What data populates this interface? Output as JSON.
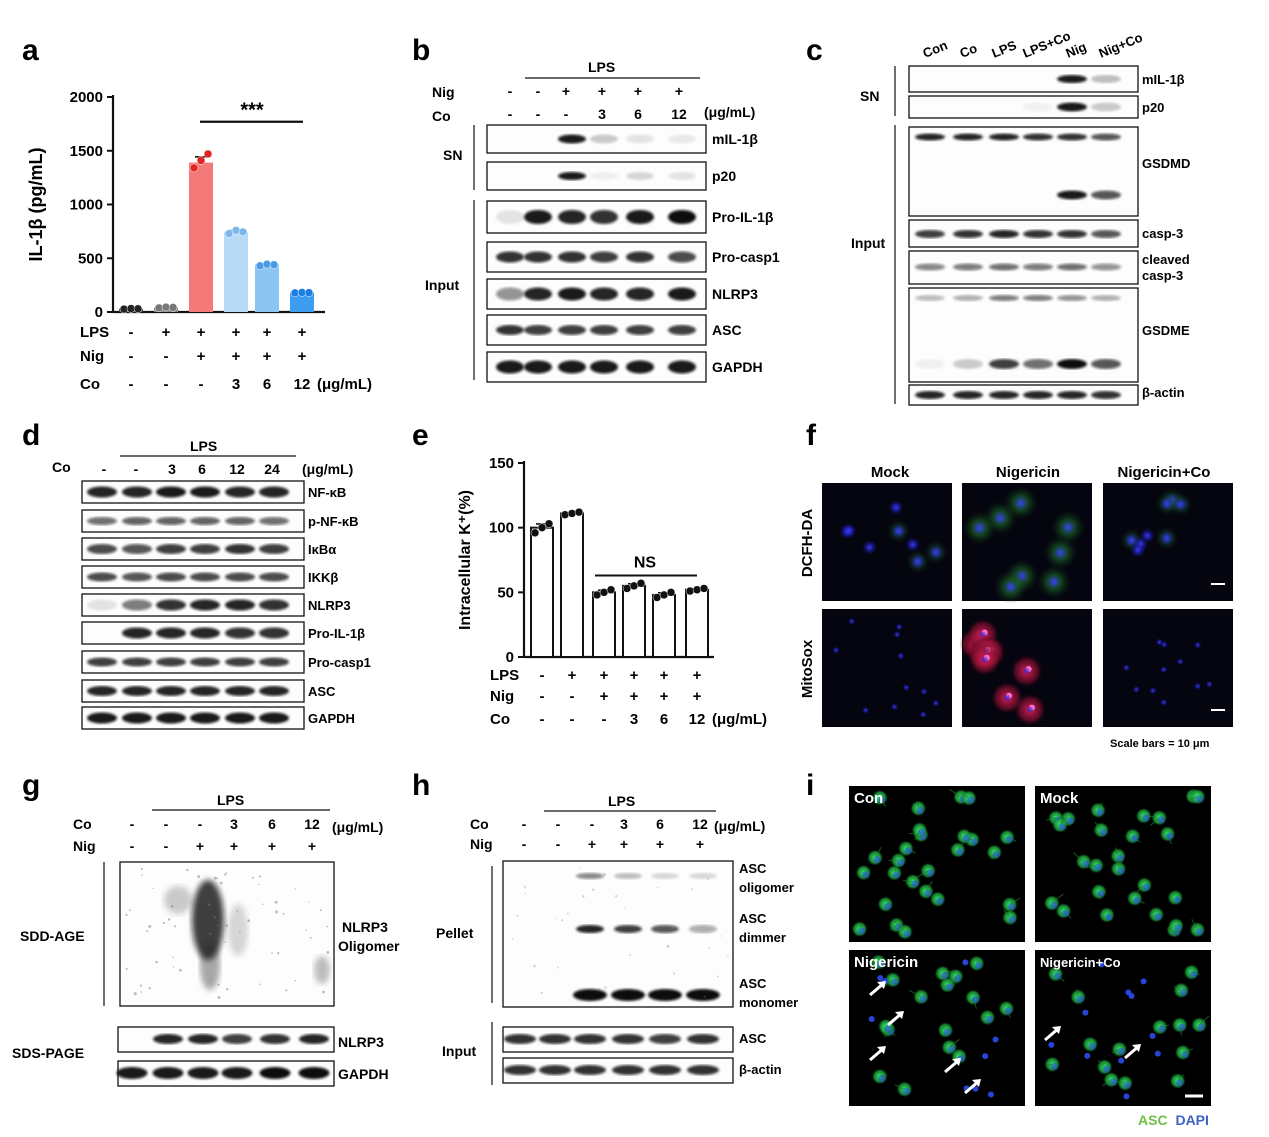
{
  "panels": {
    "a": {
      "letter": "a"
    },
    "b": {
      "letter": "b",
      "group": "LPS",
      "rows": [
        "Nig",
        "Co"
      ],
      "unit": "(μg/mL)",
      "nig": [
        "-",
        "-",
        "+",
        "+",
        "+",
        "+"
      ],
      "co": [
        "-",
        "-",
        "-",
        "3",
        "6",
        "12"
      ],
      "sections": [
        "SN",
        "Input"
      ],
      "bands": [
        "mIL-1β",
        "p20",
        "Pro-IL-1β",
        "Pro-casp1",
        "NLRP3",
        "ASC",
        "GAPDH"
      ]
    },
    "c": {
      "letter": "c",
      "lanes": [
        "Con",
        "Co",
        "LPS",
        "LPS+Co",
        "Nig",
        "Nig+Co"
      ],
      "sections": [
        "SN",
        "Input"
      ],
      "bands": [
        "mIL-1β",
        "p20",
        "GSDMD",
        "casp-3",
        "cleaved",
        "casp-3",
        "GSDME",
        "β-actin"
      ]
    },
    "d": {
      "letter": "d",
      "group": "LPS",
      "row": "Co",
      "unit": "(μg/mL)",
      "co": [
        "-",
        "-",
        "3",
        "6",
        "12",
        "24"
      ],
      "bands": [
        "NF-κB",
        "p-NF-κB",
        "IκBα",
        "IKKβ",
        "NLRP3",
        "Pro-IL-1β",
        "Pro-casp1",
        "ASC",
        "GAPDH"
      ]
    },
    "e": {
      "letter": "e"
    },
    "f": {
      "letter": "f",
      "columns": [
        "Mock",
        "Nigericin",
        "Nigericin+Co"
      ],
      "rows": [
        "DCFH-DA",
        "MitoSox"
      ],
      "scale": "Scale bars = 10 μm"
    },
    "g": {
      "letter": "g",
      "group": "LPS",
      "rows": [
        "Co",
        "Nig"
      ],
      "unit": "(μg/mL)",
      "co": [
        "-",
        "-",
        "-",
        "3",
        "6",
        "12"
      ],
      "nig": [
        "-",
        "-",
        "+",
        "+",
        "+",
        "+"
      ],
      "sections": [
        "SDD-AGE",
        "SDS-PAGE"
      ],
      "bands": [
        "NLRP3",
        "Oligomer",
        "NLRP3",
        "GAPDH"
      ]
    },
    "h": {
      "letter": "h",
      "group": "LPS",
      "rows": [
        "Co",
        "Nig"
      ],
      "unit": "(μg/mL)",
      "co": [
        "-",
        "-",
        "-",
        "3",
        "6",
        "12"
      ],
      "nig": [
        "-",
        "-",
        "+",
        "+",
        "+",
        "+"
      ],
      "sections": [
        "Pellet",
        "Input"
      ],
      "bands": [
        "ASC",
        "oligomer",
        "ASC",
        "dimmer",
        "ASC",
        "monomer",
        "ASC",
        "β-actin"
      ]
    },
    "i": {
      "letter": "i",
      "tiles": [
        "Con",
        "Mock",
        "Nigericin",
        "Nigericin+Co"
      ],
      "legend_asc": "ASC",
      "legend_dapi": "DAPI"
    }
  },
  "chart_data": [
    {
      "panel": "a",
      "type": "bar",
      "ylabel": "IL-1β (pg/mL)",
      "ylim": [
        0,
        2000
      ],
      "yticks": [
        0,
        500,
        1000,
        1500,
        2000
      ],
      "values": [
        30,
        42,
        1390,
        745,
        440,
        180
      ],
      "points": [
        [
          27,
          32,
          30
        ],
        [
          38,
          45,
          43
        ],
        [
          1340,
          1410,
          1470
        ],
        [
          730,
          760,
          745
        ],
        [
          430,
          445,
          440
        ],
        [
          178,
          182,
          180
        ]
      ],
      "colors": [
        "#444444",
        "#888888",
        "#f47a7a",
        "#b9daf5",
        "#8cc4f2",
        "#3d9df0"
      ],
      "point_colors": [
        "#222222",
        "#777777",
        "#e02424",
        "#7fb8ec",
        "#4a9be5",
        "#1a7fe0"
      ],
      "rows": {
        "LPS": [
          "-",
          "+",
          "+",
          "+",
          "+",
          "+"
        ],
        "Nig": [
          "-",
          "-",
          "+",
          "+",
          "+",
          "+"
        ],
        "Co": [
          "-",
          "-",
          "-",
          "3",
          "6",
          "12"
        ]
      },
      "row_labels": [
        "LPS",
        "Nig",
        "Co"
      ],
      "unit": "(μg/mL)",
      "significance": "***"
    },
    {
      "panel": "e",
      "type": "bar",
      "ylabel": "Intracellular K⁺(%)",
      "ylim": [
        0,
        150
      ],
      "yticks": [
        0,
        50,
        100,
        150
      ],
      "values": [
        100,
        111,
        50,
        55,
        48,
        52
      ],
      "points": [
        [
          96,
          100,
          103
        ],
        [
          110,
          111,
          112
        ],
        [
          48,
          50,
          52
        ],
        [
          53,
          55,
          57
        ],
        [
          46,
          48,
          50
        ],
        [
          51,
          52,
          53
        ]
      ],
      "rows": {
        "LPS": [
          "-",
          "+",
          "+",
          "+",
          "+",
          "+"
        ],
        "Nig": [
          "-",
          "-",
          "+",
          "+",
          "+",
          "+"
        ],
        "Co": [
          "-",
          "-",
          "-",
          "3",
          "6",
          "12"
        ]
      },
      "row_labels": [
        "LPS",
        "Nig",
        "Co"
      ],
      "unit": "(μg/mL)",
      "significance": "NS"
    }
  ]
}
